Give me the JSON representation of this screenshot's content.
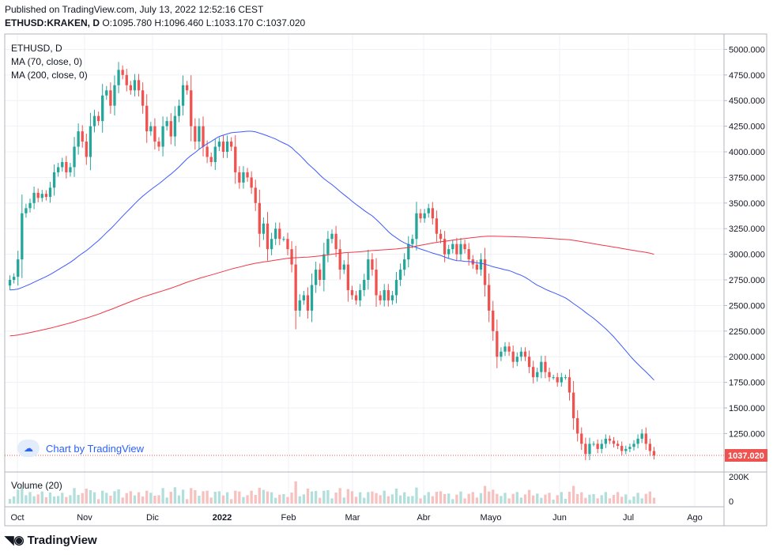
{
  "header": {
    "published": "Published on TradingView.com, July 13, 2022 12:52:16 CEST",
    "symbol": "ETHUSD:KRAKEN, D",
    "ohlc": "O:1095.780 H:1096.460 L:1033.170 C:1037.020"
  },
  "legend": {
    "symbol": "ETHUSD, D",
    "ma70": "MA (70, close, 0)",
    "ma200": "MA (200, close, 0)",
    "volume": "Volume (20)"
  },
  "watermark": "Chart by TradingView",
  "footer_logo": "TradingView",
  "colors": {
    "up": "#26a69a",
    "down": "#ef5350",
    "ma70": "#3e5aff",
    "ma200": "#f23645",
    "grid": "#eef1f6"
  },
  "chart_data": {
    "type": "candlestick",
    "price_axis": [
      "5000.000",
      "4750.000",
      "4500.000",
      "4250.000",
      "4000.000",
      "3750.000",
      "3500.000",
      "3250.000",
      "3000.000",
      "2750.000",
      "2500.000",
      "2250.000",
      "2000.000",
      "1750.000",
      "1500.000",
      "1250.000"
    ],
    "price_ylim": [
      875,
      5150
    ],
    "last_price": "1037.020",
    "volume_axis": [
      "200K",
      "0"
    ],
    "x_labels": [
      "Oct",
      "Nov",
      "Dic",
      "2022",
      "Feb",
      "Mar",
      "Abr",
      "Mayo",
      "Jun",
      "Jul",
      "Ago"
    ],
    "close": [
      2750,
      2780,
      2950,
      3400,
      3450,
      3500,
      3600,
      3550,
      3590,
      3560,
      3650,
      3800,
      3850,
      3900,
      3800,
      3850,
      4050,
      4200,
      4100,
      3950,
      4250,
      4350,
      4300,
      4550,
      4600,
      4450,
      4650,
      4800,
      4750,
      4650,
      4600,
      4700,
      4600,
      4450,
      4200,
      4250,
      4100,
      4050,
      4250,
      4300,
      4150,
      4350,
      4450,
      4650,
      4600,
      4250,
      4100,
      4250,
      4050,
      3950,
      3900,
      4050,
      4100,
      4000,
      4100,
      4050,
      3800,
      3700,
      3800,
      3750,
      3650,
      3500,
      3200,
      3300,
      3050,
      3150,
      3250,
      3150,
      3150,
      3050,
      2900,
      2450,
      2550,
      2600,
      2450,
      2700,
      2850,
      2750,
      3000,
      3150,
      3200,
      3050,
      2850,
      2900,
      2650,
      2600,
      2550,
      2650,
      2750,
      2950,
      2850,
      2600,
      2550,
      2650,
      2550,
      2600,
      2750,
      2850,
      2950,
      3100,
      3150,
      3400,
      3350,
      3400,
      3450,
      3350,
      3200,
      3150,
      3000,
      3050,
      3100,
      3000,
      3100,
      3050,
      2950,
      2900,
      2850,
      2950,
      2700,
      2450,
      2250,
      2000,
      2050,
      2100,
      2050,
      1950,
      2000,
      2050,
      2000,
      1900,
      1800,
      1850,
      1950,
      1850,
      1800,
      1800,
      1750,
      1800,
      1800,
      1650,
      1400,
      1250,
      1150,
      1050,
      1150,
      1150,
      1100,
      1150,
      1200,
      1180,
      1150,
      1130,
      1080,
      1100,
      1120,
      1150,
      1200,
      1250,
      1150,
      1080,
      1037
    ]
  }
}
